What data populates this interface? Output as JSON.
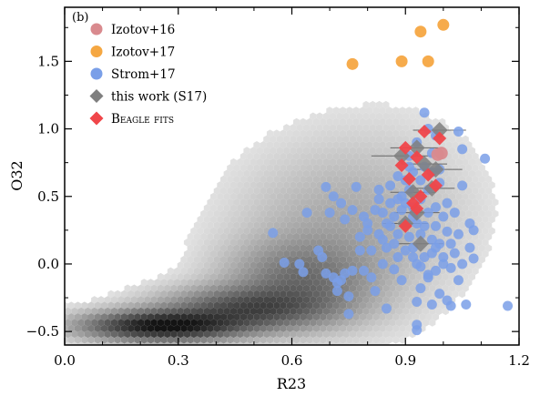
{
  "chart_data": {
    "type": "scatter",
    "panel_label": "(b)",
    "xlabel": "R23",
    "ylabel": "O32",
    "xlim": [
      0.0,
      1.2
    ],
    "ylim": [
      -0.6,
      1.9
    ],
    "xticks": [
      0.0,
      0.3,
      0.6,
      0.9,
      1.2
    ],
    "xtick_labels": [
      "0.0",
      "0.3",
      "0.6",
      "0.9",
      "1.2"
    ],
    "yticks": [
      -0.5,
      0.0,
      0.5,
      1.0,
      1.5
    ],
    "ytick_labels": [
      "−0.5",
      "0.0",
      "0.5",
      "1.0",
      "1.5"
    ],
    "grid": false,
    "legend_position": "top-left",
    "background_density": {
      "description": "2D hexbin density of a large comparison sample, grayscale",
      "peak": [
        0.25,
        -0.45
      ]
    },
    "series": [
      {
        "name": "Izotov+16",
        "marker": "circle",
        "color": "#d98a8e",
        "points": [
          [
            0.985,
            0.81
          ],
          [
            0.995,
            0.82
          ]
        ]
      },
      {
        "name": "Izotov+17",
        "marker": "circle",
        "color": "#f5a742",
        "points": [
          [
            0.76,
            1.48
          ],
          [
            0.89,
            1.5
          ],
          [
            0.94,
            1.72
          ],
          [
            0.96,
            1.5
          ],
          [
            1.0,
            1.77
          ]
        ]
      },
      {
        "name": "Strom+17",
        "marker": "circle",
        "color": "#7a9fe8",
        "points": [
          [
            0.55,
            0.23
          ],
          [
            0.58,
            0.01
          ],
          [
            0.62,
            0.0
          ],
          [
            0.63,
            -0.06
          ],
          [
            0.64,
            0.38
          ],
          [
            0.67,
            0.1
          ],
          [
            0.68,
            0.05
          ],
          [
            0.69,
            0.57
          ],
          [
            0.69,
            -0.07
          ],
          [
            0.7,
            0.38
          ],
          [
            0.71,
            -0.1
          ],
          [
            0.71,
            0.5
          ],
          [
            0.72,
            -0.14
          ],
          [
            0.72,
            -0.2
          ],
          [
            0.73,
            -0.12
          ],
          [
            0.73,
            0.45
          ],
          [
            0.74,
            -0.07
          ],
          [
            0.74,
            0.33
          ],
          [
            0.75,
            -0.37
          ],
          [
            0.75,
            -0.24
          ],
          [
            0.76,
            -0.05
          ],
          [
            0.76,
            0.4
          ],
          [
            0.77,
            0.57
          ],
          [
            0.78,
            0.2
          ],
          [
            0.78,
            0.1
          ],
          [
            0.79,
            0.35
          ],
          [
            0.79,
            -0.05
          ],
          [
            0.8,
            0.3
          ],
          [
            0.8,
            0.25
          ],
          [
            0.81,
            0.1
          ],
          [
            0.81,
            -0.1
          ],
          [
            0.82,
            0.4
          ],
          [
            0.82,
            -0.2
          ],
          [
            0.83,
            0.55
          ],
          [
            0.83,
            0.22
          ],
          [
            0.84,
            0.0
          ],
          [
            0.84,
            0.38
          ],
          [
            0.85,
            0.12
          ],
          [
            0.85,
            -0.33
          ],
          [
            0.86,
            0.28
          ],
          [
            0.86,
            0.58
          ],
          [
            0.86,
            0.45
          ],
          [
            0.87,
            0.15
          ],
          [
            0.87,
            0.35
          ],
          [
            0.87,
            -0.04
          ],
          [
            0.88,
            0.22
          ],
          [
            0.88,
            0.05
          ],
          [
            0.88,
            0.65
          ],
          [
            0.89,
            0.4
          ],
          [
            0.89,
            -0.12
          ],
          [
            0.89,
            0.5
          ],
          [
            0.9,
            0.3
          ],
          [
            0.9,
            0.1
          ],
          [
            0.9,
            0.62
          ],
          [
            0.91,
            0.8
          ],
          [
            0.91,
            0.55
          ],
          [
            0.91,
            0.2
          ],
          [
            0.91,
            0.72
          ],
          [
            0.92,
            0.12
          ],
          [
            0.92,
            0.05
          ],
          [
            0.92,
            0.35
          ],
          [
            0.92,
            0.42
          ],
          [
            0.93,
            0.0
          ],
          [
            0.93,
            -0.28
          ],
          [
            0.93,
            0.3
          ],
          [
            0.93,
            0.9
          ],
          [
            0.94,
            0.22
          ],
          [
            0.94,
            0.48
          ],
          [
            0.94,
            -0.18
          ],
          [
            0.94,
            0.62
          ],
          [
            0.94,
            -0.02
          ],
          [
            0.95,
            1.12
          ],
          [
            0.95,
            0.28
          ],
          [
            0.95,
            0.72
          ],
          [
            0.95,
            0.05
          ],
          [
            0.96,
            1.0
          ],
          [
            0.96,
            0.55
          ],
          [
            0.96,
            0.38
          ],
          [
            0.96,
            -0.1
          ],
          [
            0.96,
            -0.08
          ],
          [
            0.97,
            0.18
          ],
          [
            0.97,
            0.82
          ],
          [
            0.97,
            0.68
          ],
          [
            0.97,
            0.08
          ],
          [
            0.98,
            -0.05
          ],
          [
            0.98,
            0.42
          ],
          [
            0.98,
            0.28
          ],
          [
            0.98,
            0.95
          ],
          [
            0.99,
            0.6
          ],
          [
            0.99,
            0.15
          ],
          [
            0.99,
            -0.22
          ],
          [
            0.99,
            0.7
          ],
          [
            1.0,
            0.35
          ],
          [
            1.0,
            0.05
          ],
          [
            1.0,
            0.0
          ],
          [
            1.01,
            0.24
          ],
          [
            1.01,
            -0.27
          ],
          [
            1.01,
            0.45
          ],
          [
            1.02,
            0.15
          ],
          [
            1.02,
            -0.03
          ],
          [
            1.03,
            0.38
          ],
          [
            1.03,
            0.08
          ],
          [
            1.04,
            0.22
          ],
          [
            1.04,
            0.98
          ],
          [
            1.04,
            -0.12
          ],
          [
            1.05,
            0.0
          ],
          [
            1.05,
            0.85
          ],
          [
            1.05,
            0.58
          ],
          [
            1.06,
            -0.3
          ],
          [
            1.07,
            0.12
          ],
          [
            1.07,
            0.3
          ],
          [
            1.08,
            0.04
          ],
          [
            1.08,
            0.25
          ],
          [
            1.11,
            0.78
          ],
          [
            1.17,
            -0.31
          ],
          [
            0.93,
            -0.45
          ],
          [
            0.93,
            -0.49
          ],
          [
            1.02,
            -0.31
          ],
          [
            0.97,
            -0.3
          ],
          [
            0.98,
            0.12
          ],
          [
            0.88,
            0.48
          ],
          [
            0.9,
            0.45
          ],
          [
            0.85,
            0.3
          ],
          [
            0.84,
            0.18
          ],
          [
            0.83,
            0.48
          ],
          [
            0.92,
            0.68
          ]
        ]
      },
      {
        "name": "this work (S17)",
        "marker": "diamond",
        "color": "#7f7f7f",
        "points": [
          [
            0.89,
            0.8
          ],
          [
            0.93,
            0.86
          ],
          [
            0.99,
            0.99
          ],
          [
            0.95,
            0.74
          ],
          [
            0.98,
            0.7
          ],
          [
            0.92,
            0.53
          ],
          [
            0.97,
            0.56
          ],
          [
            0.93,
            0.38
          ],
          [
            0.9,
            0.3
          ],
          [
            0.94,
            0.15
          ]
        ],
        "x_errors": [
          0.08,
          0.07,
          0.07,
          0.06,
          0.07,
          0.06,
          0.06,
          0.06,
          0.06,
          0.06
        ]
      },
      {
        "name": "BEAGLE fits",
        "marker": "diamond",
        "color": "#f0464a",
        "points": [
          [
            0.9,
            0.86
          ],
          [
            0.89,
            0.73
          ],
          [
            0.95,
            0.98
          ],
          [
            0.99,
            0.93
          ],
          [
            0.96,
            0.66
          ],
          [
            0.93,
            0.79
          ],
          [
            0.91,
            0.63
          ],
          [
            0.94,
            0.5
          ],
          [
            0.92,
            0.45
          ],
          [
            0.98,
            0.58
          ],
          [
            0.9,
            0.28
          ],
          [
            0.93,
            0.41
          ]
        ]
      }
    ]
  }
}
